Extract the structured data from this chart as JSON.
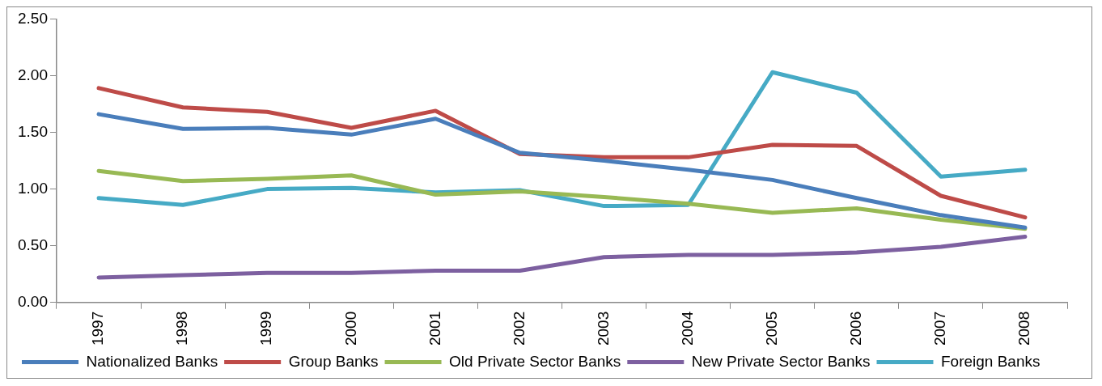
{
  "chart_data": {
    "type": "line",
    "categories": [
      "1997",
      "1998",
      "1999",
      "2000",
      "2001",
      "2002",
      "2003",
      "2004",
      "2005",
      "2006",
      "2007",
      "2008"
    ],
    "ylim": [
      0,
      2.5
    ],
    "yticks": [
      {
        "value": 0,
        "label": "0.00"
      },
      {
        "value": 0.5,
        "label": "0.50"
      },
      {
        "value": 1,
        "label": "1.00"
      },
      {
        "value": 1.5,
        "label": "1.50"
      },
      {
        "value": 2,
        "label": "2.00"
      },
      {
        "value": 2.5,
        "label": "2.50"
      }
    ],
    "grid": false,
    "legend": "bottom",
    "marker": "none",
    "line_style": "solid",
    "series": [
      {
        "name": "Nationalized Banks",
        "color": "#4a7ebb",
        "values": [
          1.66,
          1.53,
          1.54,
          1.48,
          1.62,
          1.32,
          1.25,
          1.17,
          1.08,
          0.92,
          0.77,
          0.66
        ]
      },
      {
        "name": "Group Banks",
        "color": "#be4b48",
        "values": [
          1.89,
          1.72,
          1.68,
          1.54,
          1.69,
          1.31,
          1.28,
          1.28,
          1.39,
          1.38,
          0.94,
          0.75
        ]
      },
      {
        "name": "Old Private Sector Banks",
        "color": "#98b954",
        "values": [
          1.16,
          1.07,
          1.09,
          1.12,
          0.95,
          0.98,
          0.93,
          0.87,
          0.79,
          0.83,
          0.73,
          0.65
        ]
      },
      {
        "name": "New Private Sector Banks",
        "color": "#7d60a0",
        "values": [
          0.22,
          0.24,
          0.26,
          0.26,
          0.28,
          0.28,
          0.4,
          0.42,
          0.42,
          0.44,
          0.49,
          0.58
        ]
      },
      {
        "name": "Foreign Banks",
        "color": "#46aac5",
        "values": [
          0.92,
          0.86,
          1.0,
          1.01,
          0.97,
          0.99,
          0.85,
          0.86,
          2.03,
          1.85,
          1.11,
          1.17
        ]
      }
    ]
  }
}
